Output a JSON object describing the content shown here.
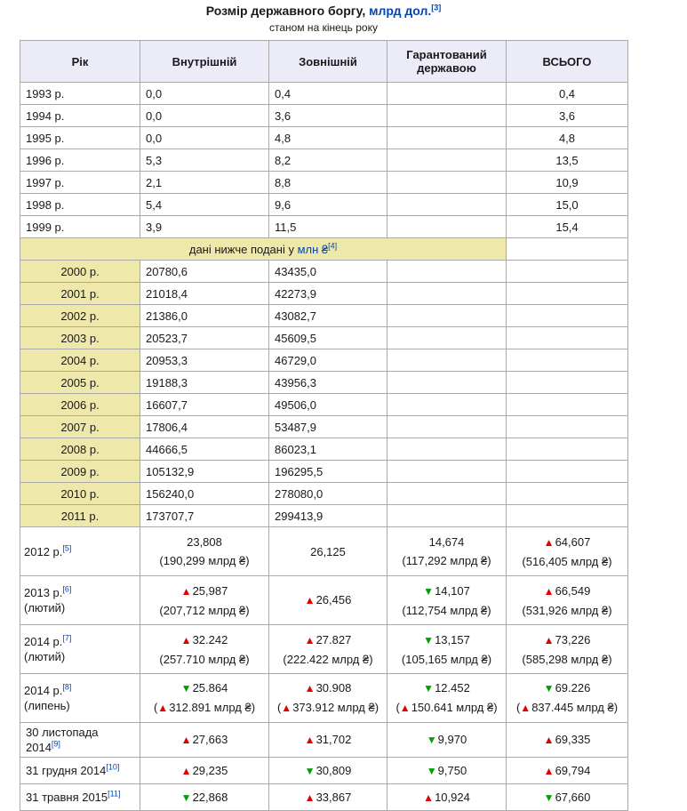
{
  "page": {
    "title_prefix": "Розмір державного боргу, ",
    "title_link": "млрд дол.",
    "title_ref": "[3]",
    "subtitle": "станом на кінець року"
  },
  "icons": {
    "trend-up-icon": "▲",
    "trend-down-icon": "▼"
  },
  "colors": {
    "link": "#0645ad",
    "header_bg": "#ececf8",
    "khaki": "#eee8aa",
    "border": "#a9a9a9",
    "trend_up": "#e00000",
    "trend_down": "#00a000"
  },
  "table": {
    "headers": [
      "Рік",
      "Внутрішній",
      "Зовнішній",
      "Гарантований державою",
      "ВСЬОГО"
    ],
    "usd_rows": [
      {
        "year": "1993 р.",
        "internal": "0,0",
        "external": "0,4",
        "guaranteed": "",
        "total": "0,4"
      },
      {
        "year": "1994 р.",
        "internal": "0,0",
        "external": "3,6",
        "guaranteed": "",
        "total": "3,6"
      },
      {
        "year": "1995 р.",
        "internal": "0,0",
        "external": "4,8",
        "guaranteed": "",
        "total": "4,8"
      },
      {
        "year": "1996 р.",
        "internal": "5,3",
        "external": "8,2",
        "guaranteed": "",
        "total": "13,5"
      },
      {
        "year": "1997 р.",
        "internal": "2,1",
        "external": "8,8",
        "guaranteed": "",
        "total": "10,9"
      },
      {
        "year": "1998 р.",
        "internal": "5,4",
        "external": "9,6",
        "guaranteed": "",
        "total": "15,0"
      },
      {
        "year": "1999 р.",
        "internal": "3,9",
        "external": "11,5",
        "guaranteed": "",
        "total": "15,4"
      }
    ],
    "band": {
      "text": "дані нижче подані у ",
      "link": "млн ₴",
      "ref": "[4]"
    },
    "uah_rows": [
      {
        "year": "2000 р.",
        "internal": "20780,6",
        "external": "43435,0"
      },
      {
        "year": "2001 р.",
        "internal": "21018,4",
        "external": "42273,9"
      },
      {
        "year": "2002 р.",
        "internal": "21386,0",
        "external": "43082,7"
      },
      {
        "year": "2003 р.",
        "internal": "20523,7",
        "external": "45609,5"
      },
      {
        "year": "2004 р.",
        "internal": "20953,3",
        "external": "46729,0"
      },
      {
        "year": "2005 р.",
        "internal": "19188,3",
        "external": "43956,3"
      },
      {
        "year": "2006 р.",
        "internal": "16607,7",
        "external": "49506,0"
      },
      {
        "year": "2007 р.",
        "internal": "17806,4",
        "external": "53487,9"
      },
      {
        "year": "2008 р.",
        "internal": "44666,5",
        "external": "86023,1"
      },
      {
        "year": "2009 р.",
        "internal": "105132,9",
        "external": "196295,5"
      },
      {
        "year": "2010 р.",
        "internal": "156240,0",
        "external": "278080,0"
      },
      {
        "year": "2011 р.",
        "internal": "173707,7",
        "external": "299413,9"
      }
    ],
    "detail_rows": [
      {
        "year": "2012 р.",
        "ref": "[5]",
        "month": "",
        "compact": false,
        "cells": {
          "internal": {
            "trend": null,
            "value": "23,808",
            "sub": {
              "trend": null,
              "text": "190,299 млрд ₴"
            }
          },
          "external": {
            "trend": null,
            "value": "26,125",
            "sub": null
          },
          "guaranteed": {
            "trend": null,
            "value": "14,674",
            "sub": {
              "trend": null,
              "text": "117,292 млрд ₴"
            }
          },
          "total": {
            "trend": "up",
            "value": "64,607",
            "sub": {
              "trend": null,
              "text": "516,405 млрд ₴"
            }
          }
        }
      },
      {
        "year": "2013 р.",
        "ref": "[6]",
        "month": "(лютий)",
        "compact": false,
        "cells": {
          "internal": {
            "trend": "up",
            "value": "25,987",
            "sub": {
              "trend": null,
              "text": "207,712 млрд ₴"
            }
          },
          "external": {
            "trend": "up",
            "value": "26,456",
            "sub": null
          },
          "guaranteed": {
            "trend": "down",
            "value": "14,107",
            "sub": {
              "trend": null,
              "text": "112,754 млрд ₴"
            }
          },
          "total": {
            "trend": "up",
            "value": "66,549",
            "sub": {
              "trend": null,
              "text": "531,926 млрд ₴"
            }
          }
        }
      },
      {
        "year": "2014 р.",
        "ref": "[7]",
        "month": "(лютий)",
        "compact": false,
        "cells": {
          "internal": {
            "trend": "up",
            "value": "32.242",
            "sub": {
              "trend": null,
              "text": "257.710 млрд ₴"
            }
          },
          "external": {
            "trend": "up",
            "value": "27.827",
            "sub": {
              "trend": null,
              "text": "222.422 млрд ₴"
            }
          },
          "guaranteed": {
            "trend": "down",
            "value": "13,157",
            "sub": {
              "trend": null,
              "text": "105,165 млрд ₴"
            }
          },
          "total": {
            "trend": "up",
            "value": "73,226",
            "sub": {
              "trend": null,
              "text": "585,298 млрд ₴"
            }
          }
        }
      },
      {
        "year": "2014 р.",
        "ref": "[8]",
        "month": "(липень)",
        "compact": false,
        "cells": {
          "internal": {
            "trend": "down",
            "value": "25.864",
            "sub": {
              "trend": "up",
              "text": "312.891 млрд ₴"
            }
          },
          "external": {
            "trend": "up",
            "value": "30.908",
            "sub": {
              "trend": "up",
              "text": "373.912 млрд ₴"
            }
          },
          "guaranteed": {
            "trend": "down",
            "value": "12.452",
            "sub": {
              "trend": "up",
              "text": "150.641 млрд ₴"
            }
          },
          "total": {
            "trend": "down",
            "value": "69.226",
            "sub": {
              "trend": "up",
              "text": "837.445 млрд ₴"
            }
          }
        }
      },
      {
        "year": "30 листопада 2014",
        "ref": "[9]",
        "month": "",
        "compact": true,
        "cells": {
          "internal": {
            "trend": "up",
            "value": "27,663",
            "sub": null
          },
          "external": {
            "trend": "up",
            "value": "31,702",
            "sub": null
          },
          "guaranteed": {
            "trend": "down",
            "value": "9,970",
            "sub": null
          },
          "total": {
            "trend": "up",
            "value": "69,335",
            "sub": null
          }
        }
      },
      {
        "year": "31 грудня 2014",
        "ref": "[10]",
        "month": "",
        "compact": true,
        "cells": {
          "internal": {
            "trend": "up",
            "value": "29,235",
            "sub": null
          },
          "external": {
            "trend": "down",
            "value": "30,809",
            "sub": null
          },
          "guaranteed": {
            "trend": "down",
            "value": "9,750",
            "sub": null
          },
          "total": {
            "trend": "up",
            "value": "69,794",
            "sub": null
          }
        }
      },
      {
        "year": "31 травня 2015",
        "ref": "[11]",
        "month": "",
        "compact": true,
        "cells": {
          "internal": {
            "trend": "down",
            "value": "22,868",
            "sub": null
          },
          "external": {
            "trend": "up",
            "value": "33,867",
            "sub": null
          },
          "guaranteed": {
            "trend": "up",
            "value": "10,924",
            "sub": null
          },
          "total": {
            "trend": "down",
            "value": "67,660",
            "sub": null
          }
        }
      }
    ]
  }
}
